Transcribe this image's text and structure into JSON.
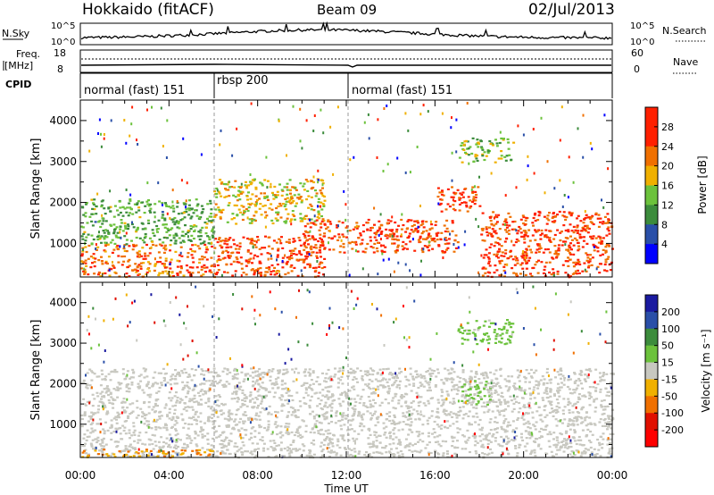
{
  "header": {
    "radar": "Hokkaido (fitACF)",
    "beam": "Beam 09",
    "date": "02/Jul/2013"
  },
  "nsky_panel": {
    "left_label": "N.Sky",
    "right_label": "N.Search",
    "ticks": [
      "10^5",
      "10^0"
    ]
  },
  "freq_panel": {
    "left_label_1": "Freq.",
    "left_label_2": "[MHz]",
    "right_label": "Nave",
    "left_ticks": [
      "18",
      "8"
    ],
    "right_ticks": [
      "60",
      "0"
    ]
  },
  "cpid_panel": {
    "label": "CPID",
    "modes": [
      {
        "text": "normal (fast) 151",
        "start_hour": 0
      },
      {
        "text": "rbsp 200",
        "start_hour": 6
      },
      {
        "text": "normal (fast) 151",
        "start_hour": 12
      }
    ]
  },
  "x_axis": {
    "label": "Time UT",
    "ticks": [
      "00:00",
      "04:00",
      "08:00",
      "12:00",
      "16:00",
      "20:00",
      "00:00"
    ],
    "range_hours": [
      0,
      24
    ]
  },
  "y_axis": {
    "label": "Slant Range [km]",
    "ticks": [
      "1000",
      "2000",
      "3000",
      "4000"
    ],
    "range_km": [
      180,
      4500
    ]
  },
  "power_colorbar": {
    "label": "Power [dB]",
    "ticks": [
      "4",
      "8",
      "12",
      "16",
      "20",
      "24",
      "28"
    ],
    "colors": [
      "#0000ff",
      "#2a4fa8",
      "#3c8c3c",
      "#6cc23c",
      "#f0b000",
      "#f07000",
      "#ff2000"
    ]
  },
  "velocity_colorbar": {
    "label": "Velocity [m s⁻¹]",
    "ticks": [
      "200",
      "100",
      "50",
      "15",
      "-15",
      "-50",
      "-100",
      "-200"
    ],
    "colors": [
      "#1a1aa0",
      "#2a4fa8",
      "#3c8c3c",
      "#6cc23c",
      "#c8c8c0",
      "#f0b000",
      "#f07000",
      "#e01000",
      "#ff0000"
    ]
  },
  "chart_data": [
    {
      "type": "heatmap",
      "title": "Power",
      "xlabel": "Time UT",
      "ylabel": "Slant Range [km]",
      "xlim": [
        0,
        24
      ],
      "ylim": [
        180,
        4500
      ],
      "colorbar": {
        "label": "Power [dB]",
        "range": [
          0,
          32
        ]
      },
      "regions": [
        {
          "x": [
            0,
            6
          ],
          "y": [
            200,
            1000
          ],
          "value": 26
        },
        {
          "x": [
            0,
            6
          ],
          "y": [
            1000,
            2100
          ],
          "value": 14
        },
        {
          "x": [
            6,
            11
          ],
          "y": [
            200,
            1200
          ],
          "value": 28
        },
        {
          "x": [
            6,
            11
          ],
          "y": [
            1500,
            2600
          ],
          "value": 20
        },
        {
          "x": [
            10,
            17
          ],
          "y": [
            800,
            1600
          ],
          "value": 28
        },
        {
          "x": [
            16,
            18
          ],
          "y": [
            1800,
            2400
          ],
          "value": 28
        },
        {
          "x": [
            18,
            24
          ],
          "y": [
            200,
            1800
          ],
          "value": 28
        },
        {
          "x": [
            17,
            19.5
          ],
          "y": [
            3000,
            3600
          ],
          "value": 16
        }
      ]
    },
    {
      "type": "heatmap",
      "title": "Velocity",
      "xlabel": "Time UT",
      "ylabel": "Slant Range [km]",
      "xlim": [
        0,
        24
      ],
      "ylim": [
        180,
        4500
      ],
      "colorbar": {
        "label": "Velocity [m s⁻¹]",
        "range": [
          -200,
          200
        ]
      },
      "regions": [
        {
          "x": [
            0,
            24
          ],
          "y": [
            200,
            2400
          ],
          "value": 0
        },
        {
          "x": [
            17,
            18.5
          ],
          "y": [
            1500,
            2200
          ],
          "value": 30
        },
        {
          "x": [
            17,
            19.5
          ],
          "y": [
            3000,
            3600
          ],
          "value": 40
        },
        {
          "x": [
            0,
            6
          ],
          "y": [
            200,
            400
          ],
          "value": -60
        }
      ]
    }
  ]
}
